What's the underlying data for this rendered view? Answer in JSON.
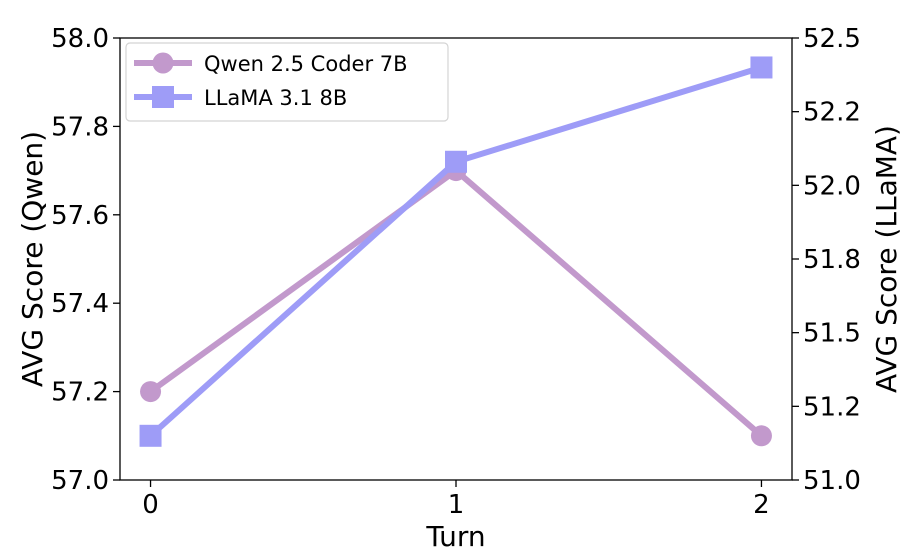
{
  "chart_data": {
    "type": "line",
    "x": [
      0,
      1,
      2
    ],
    "xlabel": "Turn",
    "xticks": [
      "0",
      "1",
      "2"
    ],
    "xlim": [
      -0.1,
      2.1
    ],
    "grid": false,
    "legend_position": "top-left",
    "axes": {
      "left": {
        "label": "AVG Score (Qwen)",
        "ylim": [
          57.0,
          58.0
        ],
        "ticks": [
          "57.0",
          "57.2",
          "57.4",
          "57.6",
          "57.8",
          "58.0"
        ]
      },
      "right": {
        "label": "AVG Score (LLaMA)",
        "ylim": [
          51.0,
          52.5
        ],
        "ticks": [
          "51.0",
          "51.2",
          "51.5",
          "51.8",
          "52.0",
          "52.2",
          "52.5"
        ]
      }
    },
    "series": [
      {
        "name": "Qwen 2.5 Coder 7B",
        "axis": "left",
        "marker": "circle",
        "color": "#c299cc",
        "values": [
          57.2,
          57.7,
          57.1
        ]
      },
      {
        "name": "LLaMA 3.1 8B",
        "axis": "right",
        "marker": "square",
        "color": "#9e9cf7",
        "values": [
          51.15,
          52.08,
          52.4
        ]
      }
    ]
  }
}
